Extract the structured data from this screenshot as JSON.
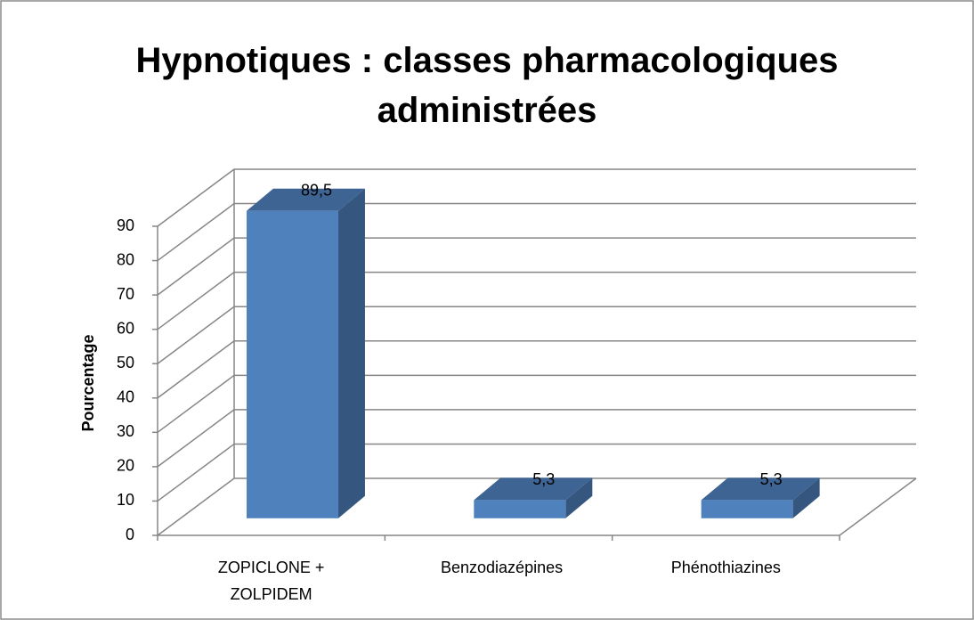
{
  "chart_data": {
    "type": "bar3d",
    "title": "Hypnotiques : classes pharmacologiques administrées",
    "ylabel": "Pourcentage",
    "categories": [
      "ZOPICLONE + ZOLPIDEM",
      "Benzodiazépines",
      "Phénothiazines"
    ],
    "values": [
      89.5,
      5.3,
      5.3
    ],
    "value_labels": [
      "89,5",
      "5,3",
      "5,3"
    ],
    "color": "#4f81bd",
    "ylim": [
      0,
      90
    ],
    "yticks": [
      0,
      10,
      20,
      30,
      40,
      50,
      60,
      70,
      80,
      90
    ],
    "grid": true
  }
}
